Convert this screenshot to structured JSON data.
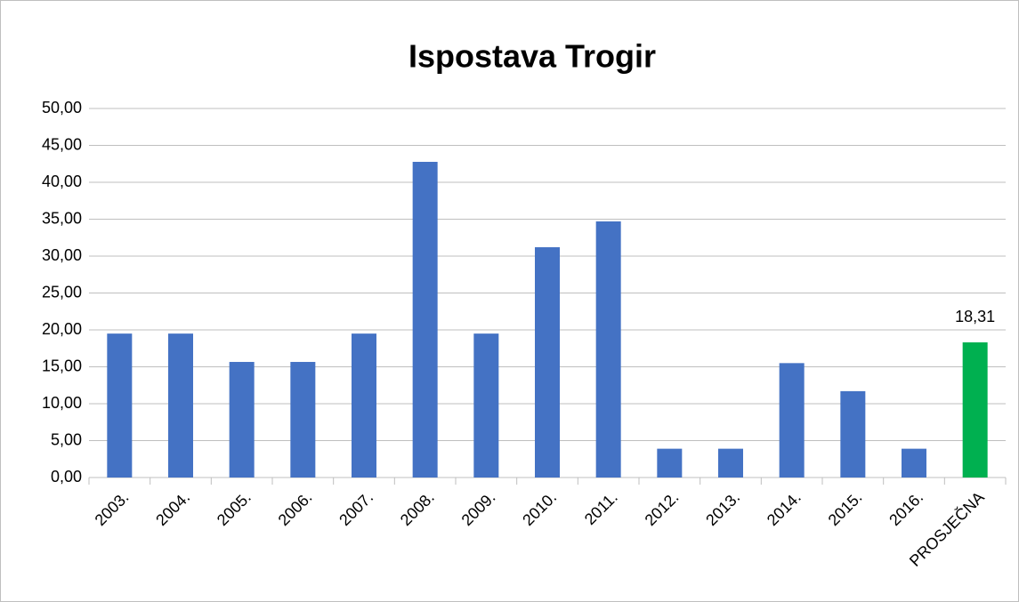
{
  "chart_data": {
    "type": "bar",
    "title": "Ispostava Trogir",
    "categories": [
      "2003.",
      "2004.",
      "2005.",
      "2006.",
      "2007.",
      "2008.",
      "2009.",
      "2010.",
      "2011.",
      "2012.",
      "2013.",
      "2014.",
      "2015.",
      "2016.",
      "PROSJEČNA"
    ],
    "values": [
      19.5,
      19.5,
      15.66,
      15.66,
      19.5,
      42.77,
      19.5,
      31.2,
      34.7,
      3.9,
      3.9,
      15.5,
      11.7,
      3.9,
      18.31
    ],
    "value_labels": [
      null,
      null,
      null,
      null,
      null,
      null,
      null,
      null,
      null,
      null,
      null,
      null,
      null,
      null,
      "18,31"
    ],
    "colors": [
      "#4472c4",
      "#4472c4",
      "#4472c4",
      "#4472c4",
      "#4472c4",
      "#4472c4",
      "#4472c4",
      "#4472c4",
      "#4472c4",
      "#4472c4",
      "#4472c4",
      "#4472c4",
      "#4472c4",
      "#4472c4",
      "#00b050"
    ],
    "ylim": [
      0,
      50
    ],
    "yticks": [
      {
        "value": 0,
        "label": "0,00"
      },
      {
        "value": 5,
        "label": "5,00"
      },
      {
        "value": 10,
        "label": "10,00"
      },
      {
        "value": 15,
        "label": "15,00"
      },
      {
        "value": 20,
        "label": "20,00"
      },
      {
        "value": 25,
        "label": "25,00"
      },
      {
        "value": 30,
        "label": "30,00"
      },
      {
        "value": 35,
        "label": "35,00"
      },
      {
        "value": 40,
        "label": "40,00"
      },
      {
        "value": 45,
        "label": "45,00"
      },
      {
        "value": 50,
        "label": "50,00"
      }
    ],
    "grid": true
  }
}
